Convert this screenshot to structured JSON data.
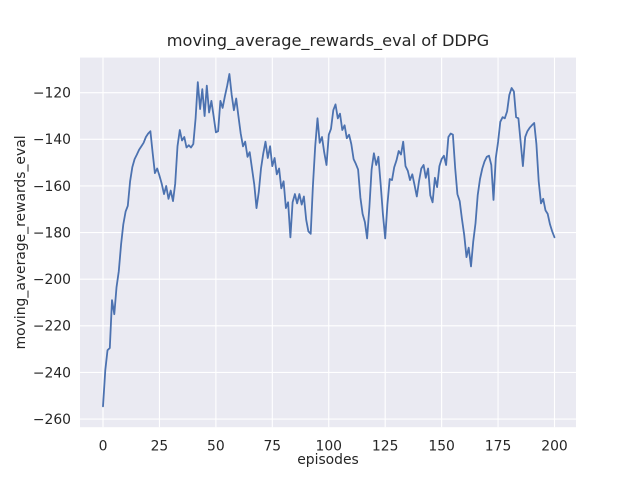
{
  "figure": {
    "title": "moving_average_rewards_eval of DDPG",
    "xlabel": "episodes",
    "ylabel": "moving_average_rewards_eval"
  },
  "axes": {
    "x_ticks": [
      0,
      25,
      50,
      75,
      100,
      125,
      150,
      175,
      200
    ],
    "y_ticks": [
      -120,
      -140,
      -160,
      -180,
      -200,
      -220,
      -240,
      -260
    ],
    "background_color": "#EAEAF2",
    "grid_color": "#FFFFFF",
    "text_color": "#262626"
  },
  "chart_data": {
    "type": "line",
    "title": "moving_average_rewards_eval of DDPG",
    "xlabel": "episodes",
    "ylabel": "moving_average_rewards_eval",
    "grid": true,
    "legend": false,
    "xlim": [
      -10.2,
      209.5
    ],
    "ylim": [
      -263.5,
      -104.9
    ],
    "x_start": 0,
    "x_step": 1,
    "series": [
      {
        "name": "moving_average_rewards_eval",
        "color": "#4C72B0",
        "values": [
          -254.5,
          -239,
          -230.5,
          -229.5,
          -209,
          -215,
          -203.5,
          -196.5,
          -185,
          -176.5,
          -171,
          -168.5,
          -158,
          -152,
          -148.5,
          -146.5,
          -144.5,
          -143,
          -141.5,
          -139,
          -137.5,
          -136.5,
          -146,
          -154.5,
          -152.5,
          -155.5,
          -159,
          -163.5,
          -160,
          -165.5,
          -162,
          -166.5,
          -159,
          -143,
          -136,
          -140.5,
          -139,
          -143.5,
          -142.5,
          -143.5,
          -142,
          -131,
          -115.5,
          -127,
          -118.5,
          -130,
          -117,
          -128.5,
          -123.5,
          -130,
          -137,
          -136.5,
          -123.5,
          -126.5,
          -121.5,
          -117,
          -112,
          -121,
          -127.5,
          -122.5,
          -130,
          -137.5,
          -143,
          -141,
          -147.5,
          -145.5,
          -152.5,
          -159.5,
          -169.5,
          -162.5,
          -152.5,
          -146,
          -141,
          -148,
          -143,
          -151.5,
          -148,
          -155,
          -152.5,
          -161,
          -158,
          -169.5,
          -167,
          -182,
          -167,
          -163.5,
          -167.5,
          -163.5,
          -168,
          -164.5,
          -174.5,
          -179.5,
          -180.5,
          -160,
          -143,
          -131,
          -141.5,
          -139,
          -145.5,
          -151,
          -138,
          -135.5,
          -127.5,
          -125,
          -131,
          -129,
          -136,
          -134,
          -139.5,
          -138,
          -142,
          -148.5,
          -150.5,
          -153,
          -165,
          -172,
          -175.5,
          -182.5,
          -169,
          -153,
          -146,
          -151,
          -147.5,
          -159.5,
          -172,
          -182.5,
          -168,
          -157,
          -157.5,
          -152,
          -149,
          -145,
          -146.5,
          -141,
          -151.5,
          -153.5,
          -157.5,
          -155,
          -159.5,
          -164.5,
          -158,
          -152.5,
          -151,
          -156.5,
          -152.5,
          -164,
          -167,
          -156.5,
          -160.5,
          -151.5,
          -148.5,
          -147,
          -151,
          -139,
          -137.5,
          -138,
          -152.5,
          -163.5,
          -166.5,
          -174,
          -181,
          -190.5,
          -186.5,
          -194.5,
          -184,
          -176,
          -164,
          -157,
          -152.5,
          -149.5,
          -147.5,
          -147,
          -151,
          -166,
          -148,
          -141,
          -132.5,
          -130.5,
          -131,
          -128,
          -121,
          -118,
          -119.5,
          -130.5,
          -131,
          -141,
          -151.5,
          -139,
          -136.5,
          -135,
          -134,
          -133,
          -142,
          -158,
          -167.5,
          -165.5,
          -170.5,
          -172,
          -176.5,
          -179.5,
          -182
        ]
      }
    ]
  }
}
